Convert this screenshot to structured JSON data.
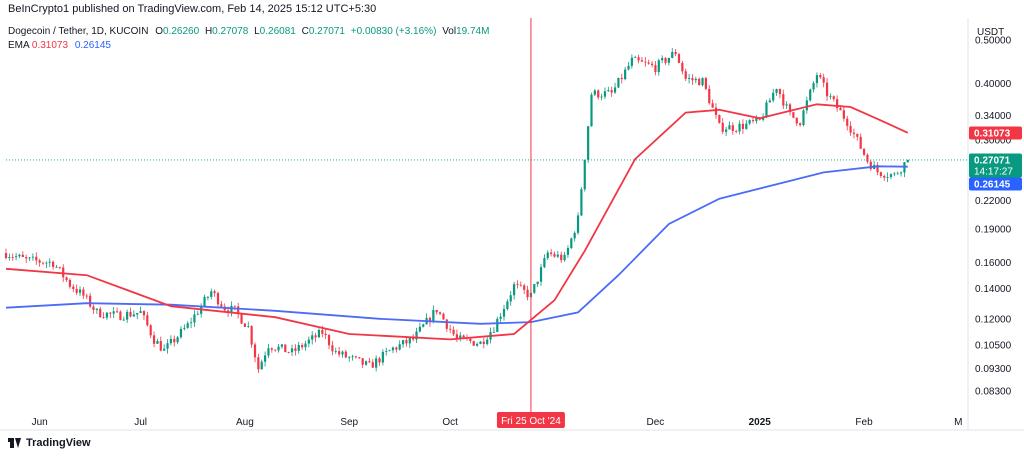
{
  "header": {
    "published": "BeInCrypto1 published on TradingView.com, Feb 14, 2025 15:12 UTC+5:30"
  },
  "legend": {
    "symbol": "Dogecoin / Tether, 1D, KUCOIN",
    "o_label": "O",
    "o_value": "0.26260",
    "h_label": "H",
    "h_value": "0.27078",
    "l_label": "L",
    "l_value": "0.26081",
    "c_label": "C",
    "c_value": "0.27071",
    "change": "+0.00830 (+3.16%)",
    "vol_label": "Vol",
    "vol_value": "19.74M",
    "ema_label": "EMA",
    "ema_fast": "0.31073",
    "ema_slow": "0.26145"
  },
  "footer": {
    "brand": "TradingView"
  },
  "colors": {
    "up": "#089981",
    "down": "#f23645",
    "ema_fast": "#f23645",
    "ema_slow": "#4a6cf7",
    "crosshair": "#f23645"
  },
  "chart_data": {
    "type": "candlestick",
    "currency": "USDT",
    "y_scale": "log",
    "ylim": [
      0.076,
      0.56
    ],
    "y_ticks": [
      {
        "value": 0.5,
        "label": "0.50000"
      },
      {
        "value": 0.4,
        "label": "0.40000"
      },
      {
        "value": 0.34,
        "label": "0.34000"
      },
      {
        "value": 0.3,
        "label": "0.30000"
      },
      {
        "value": 0.22,
        "label": "0.22000"
      },
      {
        "value": 0.19,
        "label": "0.19000"
      },
      {
        "value": 0.16,
        "label": "0.16000"
      },
      {
        "value": 0.14,
        "label": "0.14000"
      },
      {
        "value": 0.12,
        "label": "0.12000"
      },
      {
        "value": 0.105,
        "label": "0.10500"
      },
      {
        "value": 0.093,
        "label": "0.09300"
      },
      {
        "value": 0.083,
        "label": "0.08300"
      }
    ],
    "x_range": [
      "2024-05-22",
      "2025-03-03"
    ],
    "x_ticks": [
      {
        "date": "2024-06-01",
        "label": "Jun"
      },
      {
        "date": "2024-07-01",
        "label": "Jul"
      },
      {
        "date": "2024-08-01",
        "label": "Aug"
      },
      {
        "date": "2024-09-01",
        "label": "Sep"
      },
      {
        "date": "2024-10-01",
        "label": "Oct"
      },
      {
        "date": "2024-12-01",
        "label": "Dec"
      },
      {
        "date": "2025-01-01",
        "label": "2025"
      },
      {
        "date": "2025-02-01",
        "label": "Feb"
      },
      {
        "date": "2025-03-01",
        "label": "M"
      }
    ],
    "crosshair": {
      "date": "2024-10-25",
      "label": "Fri 25 Oct '24"
    },
    "price_labels": [
      {
        "value": 0.31073,
        "text": "0.31073",
        "color": "#f23645"
      },
      {
        "value": 0.27071,
        "text": "0.27071",
        "sub": "14:17:27",
        "color": "#089981"
      },
      {
        "value": 0.26145,
        "text": "0.26145",
        "color": "#2962ff"
      }
    ],
    "last_price": 0.27071,
    "price_path": [
      [
        "2024-05-22",
        0.168
      ],
      [
        "2024-05-28",
        0.162
      ],
      [
        "2024-06-05",
        0.16
      ],
      [
        "2024-06-10",
        0.143
      ],
      [
        "2024-06-14",
        0.135
      ],
      [
        "2024-06-18",
        0.124
      ],
      [
        "2024-06-24",
        0.122
      ],
      [
        "2024-07-01",
        0.124
      ],
      [
        "2024-07-05",
        0.108
      ],
      [
        "2024-07-08",
        0.102
      ],
      [
        "2024-07-15",
        0.116
      ],
      [
        "2024-07-22",
        0.138
      ],
      [
        "2024-07-26",
        0.127
      ],
      [
        "2024-07-29",
        0.125
      ],
      [
        "2024-08-02",
        0.115
      ],
      [
        "2024-08-05",
        0.093
      ],
      [
        "2024-08-08",
        0.105
      ],
      [
        "2024-08-15",
        0.101
      ],
      [
        "2024-08-24",
        0.112
      ],
      [
        "2024-08-28",
        0.101
      ],
      [
        "2024-09-07",
        0.094
      ],
      [
        "2024-09-14",
        0.103
      ],
      [
        "2024-09-20",
        0.108
      ],
      [
        "2024-09-27",
        0.126
      ],
      [
        "2024-10-03",
        0.108
      ],
      [
        "2024-10-10",
        0.106
      ],
      [
        "2024-10-14",
        0.115
      ],
      [
        "2024-10-20",
        0.142
      ],
      [
        "2024-10-25",
        0.135
      ],
      [
        "2024-10-30",
        0.168
      ],
      [
        "2024-11-04",
        0.163
      ],
      [
        "2024-11-08",
        0.2
      ],
      [
        "2024-11-12",
        0.38
      ],
      [
        "2024-11-18",
        0.38
      ],
      [
        "2024-11-24",
        0.45
      ],
      [
        "2024-12-01",
        0.435
      ],
      [
        "2024-12-07",
        0.47
      ],
      [
        "2024-12-10",
        0.41
      ],
      [
        "2024-12-15",
        0.405
      ],
      [
        "2024-12-20",
        0.32
      ],
      [
        "2024-12-25",
        0.32
      ],
      [
        "2025-01-01",
        0.33
      ],
      [
        "2025-01-06",
        0.395
      ],
      [
        "2025-01-10",
        0.34
      ],
      [
        "2025-01-13",
        0.33
      ],
      [
        "2025-01-18",
        0.42
      ],
      [
        "2025-01-21",
        0.38
      ],
      [
        "2025-01-27",
        0.33
      ],
      [
        "2025-02-02",
        0.27
      ],
      [
        "2025-02-05",
        0.255
      ],
      [
        "2025-02-10",
        0.25
      ],
      [
        "2025-02-14",
        0.271
      ]
    ],
    "ema_fast_path": [
      [
        "2024-05-22",
        0.155
      ],
      [
        "2024-06-15",
        0.15
      ],
      [
        "2024-07-10",
        0.128
      ],
      [
        "2024-08-10",
        0.121
      ],
      [
        "2024-09-01",
        0.111
      ],
      [
        "2024-10-01",
        0.108
      ],
      [
        "2024-10-20",
        0.111
      ],
      [
        "2024-11-01",
        0.132
      ],
      [
        "2024-11-10",
        0.17
      ],
      [
        "2024-11-25",
        0.272
      ],
      [
        "2024-12-10",
        0.345
      ],
      [
        "2024-12-20",
        0.35
      ],
      [
        "2025-01-01",
        0.335
      ],
      [
        "2025-01-18",
        0.36
      ],
      [
        "2025-01-28",
        0.355
      ],
      [
        "2025-02-05",
        0.334
      ],
      [
        "2025-02-14",
        0.311
      ]
    ],
    "ema_slow_path": [
      [
        "2024-05-22",
        0.127
      ],
      [
        "2024-06-15",
        0.13
      ],
      [
        "2024-07-10",
        0.129
      ],
      [
        "2024-08-10",
        0.125
      ],
      [
        "2024-09-10",
        0.12
      ],
      [
        "2024-10-10",
        0.117
      ],
      [
        "2024-10-25",
        0.118
      ],
      [
        "2024-11-08",
        0.124
      ],
      [
        "2024-11-20",
        0.15
      ],
      [
        "2024-12-05",
        0.195
      ],
      [
        "2024-12-20",
        0.222
      ],
      [
        "2025-01-05",
        0.238
      ],
      [
        "2025-01-20",
        0.254
      ],
      [
        "2025-02-05",
        0.262
      ],
      [
        "2025-02-14",
        0.26145
      ]
    ]
  }
}
